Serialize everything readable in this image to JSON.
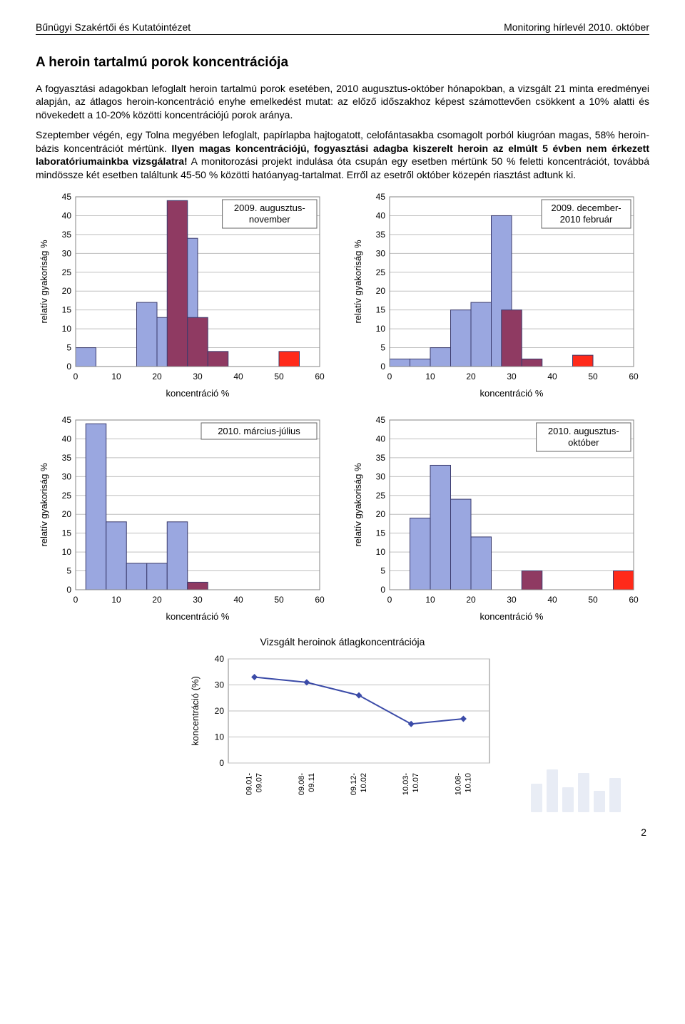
{
  "header": {
    "left": "Bűnügyi Szakértői és Kutatóintézet",
    "right": "Monitoring hírlevél 2010. október"
  },
  "title": "A heroin tartalmú porok koncentrációja",
  "paragraph": {
    "p1": "A fogyasztási adagokban lefoglalt heroin tartalmú porok esetében, 2010 augusztus-október hónapokban, a vizsgált 21 minta eredményei alapján, az átlagos heroin-koncentráció enyhe emelkedést mutat: az előző időszakhoz képest számottevően csökkent a 10% alatti és növekedett a 10-20% közötti koncentrációjú porok aránya.",
    "p2a": "Szeptember végén, egy Tolna megyében lefoglalt, papírlapba hajtogatott, celofántasakba csomagolt porból kiugróan magas, 58% heroin-bázis koncentrációt mértünk. ",
    "p2bold": "Ilyen magas koncentrációjú, fogyasztási adagba kiszerelt heroin az elmúlt 5 évben nem érkezett laboratóriumainkba vizsgálatra!",
    "p2b": " A monitorozási projekt indulása óta csupán egy esetben mértünk 50 % feletti koncentrációt, továbbá mindössze két esetben találtunk 45-50 % közötti hatóanyag-tartalmat. Erről az esetről október közepén riasztást adtunk ki."
  },
  "chart_common": {
    "ylabel": "relatív gyakoriság %",
    "xlabel": "koncentráció %",
    "ylim": [
      0,
      45
    ],
    "ytick_step": 5,
    "xlim": [
      0,
      60
    ],
    "xtick_step": 10,
    "label_fontsize": 13,
    "tick_fontsize": 12,
    "grid_color": "#bfbfbf",
    "background": "#ffffff",
    "border_color": "#848484",
    "bar_border": "#3b3b6d",
    "bar_blue": "#9aa7e0",
    "bar_purple": "#8f3a62",
    "bar_red": "#ff2a1a"
  },
  "charts": [
    {
      "id": "c1",
      "legend": "2009. augusztus-november",
      "bars": [
        {
          "x": 2.5,
          "h": 5,
          "c": "blue"
        },
        {
          "x": 17.5,
          "h": 17,
          "c": "blue"
        },
        {
          "x": 22.5,
          "h": 13,
          "c": "blue"
        },
        {
          "x": 25,
          "h": 44,
          "c": "purple",
          "w": 5
        },
        {
          "x": 27.5,
          "h": 34,
          "c": "blue",
          "behind": true
        },
        {
          "x": 30,
          "h": 13,
          "c": "purple",
          "w": 5
        },
        {
          "x": 35,
          "h": 4,
          "c": "purple",
          "w": 5
        },
        {
          "x": 52.5,
          "h": 4,
          "c": "red"
        }
      ]
    },
    {
      "id": "c2",
      "legend": "2009. december-2010 február",
      "bars": [
        {
          "x": 2.5,
          "h": 2,
          "c": "blue"
        },
        {
          "x": 7.5,
          "h": 2,
          "c": "blue"
        },
        {
          "x": 12.5,
          "h": 5,
          "c": "blue"
        },
        {
          "x": 17.5,
          "h": 15,
          "c": "blue"
        },
        {
          "x": 22.5,
          "h": 17,
          "c": "blue"
        },
        {
          "x": 27.5,
          "h": 40,
          "c": "blue"
        },
        {
          "x": 30,
          "h": 15,
          "c": "purple",
          "w": 5
        },
        {
          "x": 35,
          "h": 2,
          "c": "purple",
          "w": 5
        },
        {
          "x": 47.5,
          "h": 3,
          "c": "red"
        }
      ]
    },
    {
      "id": "c3",
      "legend": "2010. március-július",
      "bars": [
        {
          "x": 5,
          "h": 44,
          "c": "blue",
          "w": 5
        },
        {
          "x": 10,
          "h": 18,
          "c": "blue",
          "w": 5
        },
        {
          "x": 15,
          "h": 7,
          "c": "blue",
          "w": 5
        },
        {
          "x": 20,
          "h": 7,
          "c": "blue",
          "w": 5
        },
        {
          "x": 25,
          "h": 18,
          "c": "blue",
          "w": 5
        },
        {
          "x": 30,
          "h": 2,
          "c": "purple",
          "w": 5
        }
      ]
    },
    {
      "id": "c4",
      "legend": "2010. augusztus-október",
      "bars": [
        {
          "x": 7.5,
          "h": 19,
          "c": "blue"
        },
        {
          "x": 12.5,
          "h": 33,
          "c": "blue"
        },
        {
          "x": 17.5,
          "h": 24,
          "c": "blue"
        },
        {
          "x": 22.5,
          "h": 14,
          "c": "blue"
        },
        {
          "x": 35,
          "h": 5,
          "c": "purple",
          "w": 5
        },
        {
          "x": 57.5,
          "h": 5,
          "c": "red"
        }
      ]
    }
  ],
  "line_chart": {
    "title": "Vizsgált heroinok átlagkoncentrációja",
    "ylabel": "koncentráció (%)",
    "ylim": [
      0,
      40
    ],
    "ytick_step": 10,
    "categories": [
      "09.01-09.07",
      "09.08-09.11",
      "09.12-10.02",
      "10.03-10.07",
      "10.08-10.10"
    ],
    "values": [
      33,
      31,
      26,
      15,
      17
    ],
    "line_color": "#3b4ba8",
    "marker_color": "#3b4ba8",
    "marker_size": 9,
    "grid_color": "#bfbfbf",
    "label_fontsize": 13,
    "tick_fontsize": 11
  },
  "page_number": "2"
}
